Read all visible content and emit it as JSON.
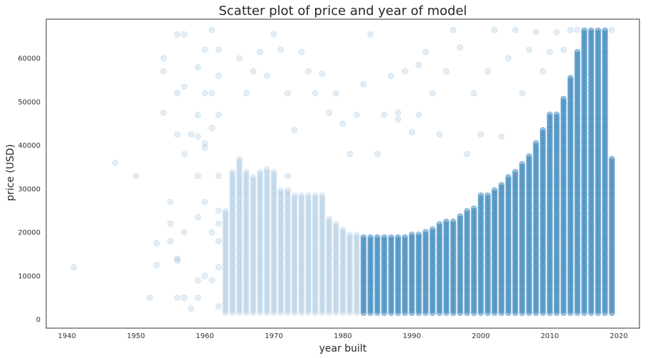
{
  "chart_data": {
    "type": "scatter",
    "title": "Scatter plot of price and year of model",
    "xlabel": "year built",
    "ylabel": "price (USD)",
    "xlim": [
      1937,
      2023
    ],
    "ylim": [
      -2000,
      69000
    ],
    "x_ticks": [
      1940,
      1950,
      1960,
      1970,
      1980,
      1990,
      2000,
      2010,
      2020
    ],
    "y_ticks": [
      0,
      10000,
      20000,
      30000,
      40000,
      50000,
      60000
    ],
    "grid": false,
    "legend": "none",
    "point_color": "#1f77b4",
    "point_alpha": 0.12,
    "series": [
      {
        "points": [
          [
            1941,
            12000
          ],
          [
            1947,
            36000
          ],
          [
            1950,
            33000
          ],
          [
            1952,
            5000
          ],
          [
            1953,
            17500
          ],
          [
            1953,
            12500
          ],
          [
            1954,
            60000
          ],
          [
            1954,
            57000
          ],
          [
            1954,
            47500
          ],
          [
            1955,
            27000
          ],
          [
            1955,
            22000
          ],
          [
            1955,
            18000
          ],
          [
            1956,
            65500
          ],
          [
            1956,
            52000
          ],
          [
            1956,
            42500
          ],
          [
            1956,
            14000
          ],
          [
            1956,
            13500
          ],
          [
            1956,
            5000
          ],
          [
            1957,
            65500
          ],
          [
            1957,
            53500
          ],
          [
            1957,
            38000
          ],
          [
            1957,
            20000
          ],
          [
            1957,
            5000
          ],
          [
            1958,
            42500
          ],
          [
            1958,
            2500
          ],
          [
            1959,
            58000
          ],
          [
            1959,
            47000
          ],
          [
            1959,
            42000
          ],
          [
            1959,
            33000
          ],
          [
            1959,
            23500
          ],
          [
            1959,
            9000
          ],
          [
            1959,
            5000
          ],
          [
            1960,
            62000
          ],
          [
            1960,
            52000
          ],
          [
            1960,
            40500
          ],
          [
            1960,
            39500
          ],
          [
            1960,
            27000
          ],
          [
            1960,
            10000
          ],
          [
            1961,
            66500
          ],
          [
            1961,
            52000
          ],
          [
            1961,
            44000
          ],
          [
            1961,
            20000
          ],
          [
            1961,
            9000
          ],
          [
            1962,
            62000
          ],
          [
            1962,
            56000
          ],
          [
            1962,
            47000
          ],
          [
            1962,
            33000
          ],
          [
            1962,
            25000
          ],
          [
            1962,
            22000
          ],
          [
            1962,
            18000
          ],
          [
            1962,
            12000
          ],
          [
            1962,
            3000
          ],
          [
            1965,
            60000
          ],
          [
            1966,
            52000
          ],
          [
            1967,
            57000
          ],
          [
            1968,
            61500
          ],
          [
            1969,
            56000
          ],
          [
            1970,
            65500
          ],
          [
            1971,
            62000
          ],
          [
            1972,
            52000
          ],
          [
            1972,
            33000
          ],
          [
            1973,
            43500
          ],
          [
            1974,
            61500
          ],
          [
            1975,
            57000
          ],
          [
            1976,
            52000
          ],
          [
            1977,
            56500
          ],
          [
            1978,
            47500
          ],
          [
            1979,
            52000
          ],
          [
            1980,
            45000
          ],
          [
            1981,
            38000
          ],
          [
            1982,
            47000
          ],
          [
            1983,
            54000
          ],
          [
            1984,
            65500
          ],
          [
            1985,
            38000
          ],
          [
            1986,
            47000
          ],
          [
            1987,
            56000
          ],
          [
            1988,
            47500
          ],
          [
            1988,
            46000
          ],
          [
            1989,
            57000
          ],
          [
            1990,
            43000
          ],
          [
            1991,
            58500
          ],
          [
            1991,
            47000
          ],
          [
            1992,
            61500
          ],
          [
            1993,
            52000
          ],
          [
            1994,
            42500
          ],
          [
            1995,
            57000
          ],
          [
            1996,
            66500
          ],
          [
            1997,
            62500
          ],
          [
            1998,
            38000
          ],
          [
            1999,
            52000
          ],
          [
            2000,
            42500
          ],
          [
            2001,
            57000
          ],
          [
            2002,
            66500
          ],
          [
            2003,
            42000
          ],
          [
            2004,
            60000
          ],
          [
            2005,
            66500
          ],
          [
            2006,
            52000
          ],
          [
            2007,
            62000
          ],
          [
            2008,
            66000
          ],
          [
            2009,
            57000
          ],
          [
            2010,
            61500
          ],
          [
            2011,
            66000
          ],
          [
            2012,
            62000
          ],
          [
            2013,
            66500
          ],
          [
            2014,
            66500
          ],
          [
            2015,
            66500
          ],
          [
            2016,
            66500
          ],
          [
            2017,
            66500
          ],
          [
            2018,
            66500
          ],
          [
            2019,
            66500
          ]
        ]
      }
    ],
    "dense_columns": [
      [
        1963,
        1500,
        25000
      ],
      [
        1964,
        1500,
        34000
      ],
      [
        1965,
        1500,
        37000
      ],
      [
        1966,
        1500,
        34000
      ],
      [
        1967,
        1500,
        33000
      ],
      [
        1968,
        1500,
        34000
      ],
      [
        1969,
        1500,
        35000
      ],
      [
        1970,
        1500,
        34000
      ],
      [
        1971,
        1500,
        30000
      ],
      [
        1972,
        1500,
        30000
      ],
      [
        1973,
        1500,
        28500
      ],
      [
        1974,
        1500,
        28500
      ],
      [
        1975,
        1500,
        28500
      ],
      [
        1976,
        1500,
        28500
      ],
      [
        1977,
        1500,
        28500
      ],
      [
        1978,
        1500,
        23500
      ],
      [
        1979,
        1500,
        22000
      ],
      [
        1980,
        1500,
        21000
      ],
      [
        1981,
        1500,
        20000
      ],
      [
        1982,
        1500,
        19500
      ],
      [
        1983,
        1500,
        19000
      ],
      [
        1984,
        1500,
        19000
      ],
      [
        1985,
        1500,
        19000
      ],
      [
        1986,
        1500,
        19000
      ],
      [
        1987,
        1500,
        19000
      ],
      [
        1988,
        1500,
        19000
      ],
      [
        1989,
        1500,
        19000
      ],
      [
        1990,
        1500,
        19500
      ],
      [
        1991,
        1500,
        20000
      ],
      [
        1992,
        1500,
        20500
      ],
      [
        1993,
        1500,
        21000
      ],
      [
        1994,
        1500,
        22000
      ],
      [
        1995,
        1500,
        22500
      ],
      [
        1996,
        1500,
        23000
      ],
      [
        1997,
        1500,
        24000
      ],
      [
        1998,
        1500,
        25000
      ],
      [
        1999,
        1500,
        26000
      ],
      [
        2000,
        1500,
        28500
      ],
      [
        2001,
        1500,
        29000
      ],
      [
        2002,
        1500,
        30000
      ],
      [
        2003,
        1500,
        31000
      ],
      [
        2004,
        1500,
        33000
      ],
      [
        2005,
        1500,
        34000
      ],
      [
        2006,
        1500,
        36000
      ],
      [
        2007,
        1500,
        38000
      ],
      [
        2008,
        1500,
        41000
      ],
      [
        2009,
        1500,
        44000
      ],
      [
        2010,
        1500,
        47500
      ],
      [
        2011,
        1500,
        47500
      ],
      [
        2012,
        1500,
        51000
      ],
      [
        2013,
        1500,
        56000
      ],
      [
        2014,
        1500,
        61500
      ],
      [
        2015,
        1500,
        66500
      ],
      [
        2016,
        1500,
        66500
      ],
      [
        2017,
        1500,
        66500
      ],
      [
        2018,
        1500,
        66500
      ],
      [
        2019,
        1500,
        37000
      ]
    ]
  }
}
